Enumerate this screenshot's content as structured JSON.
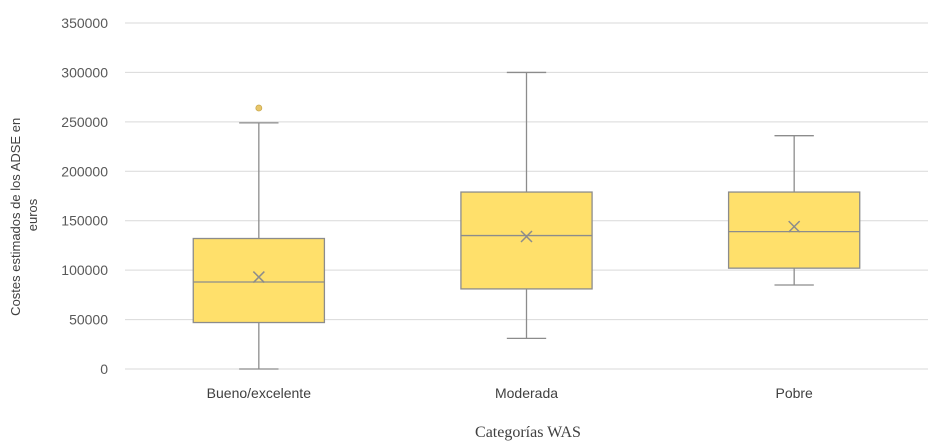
{
  "chart_data": {
    "type": "boxplot",
    "title": "",
    "xlabel": "Categorías WAS",
    "ylabel_lines": [
      "Costes  estimados de los ADSE en",
      "euros"
    ],
    "ylim": [
      0,
      350000
    ],
    "yticks": [
      0,
      50000,
      100000,
      150000,
      200000,
      250000,
      300000,
      350000
    ],
    "ytick_labels": [
      "0",
      "50000",
      "100000",
      "150000",
      "200000",
      "250000",
      "300000",
      "350000"
    ],
    "grid": true,
    "legend": "none",
    "box_color": "#FFE06B",
    "box_edge_color": "#8C8C8C",
    "outlier_color": "#E8C66A",
    "categories": [
      "Bueno/excelente",
      "Moderada",
      "Pobre"
    ],
    "boxes": [
      {
        "category": "Bueno/excelente",
        "min": 0,
        "q1": 47000,
        "median": 88000,
        "q3": 132000,
        "max": 249000,
        "mean": 93000,
        "outliers": [
          264000
        ]
      },
      {
        "category": "Moderada",
        "min": 31000,
        "q1": 81000,
        "median": 135000,
        "q3": 179000,
        "max": 300000,
        "mean": 134000,
        "outliers": []
      },
      {
        "category": "Pobre",
        "min": 85000,
        "q1": 102000,
        "median": 139000,
        "q3": 179000,
        "max": 236000,
        "mean": 144000,
        "outliers": []
      }
    ]
  }
}
